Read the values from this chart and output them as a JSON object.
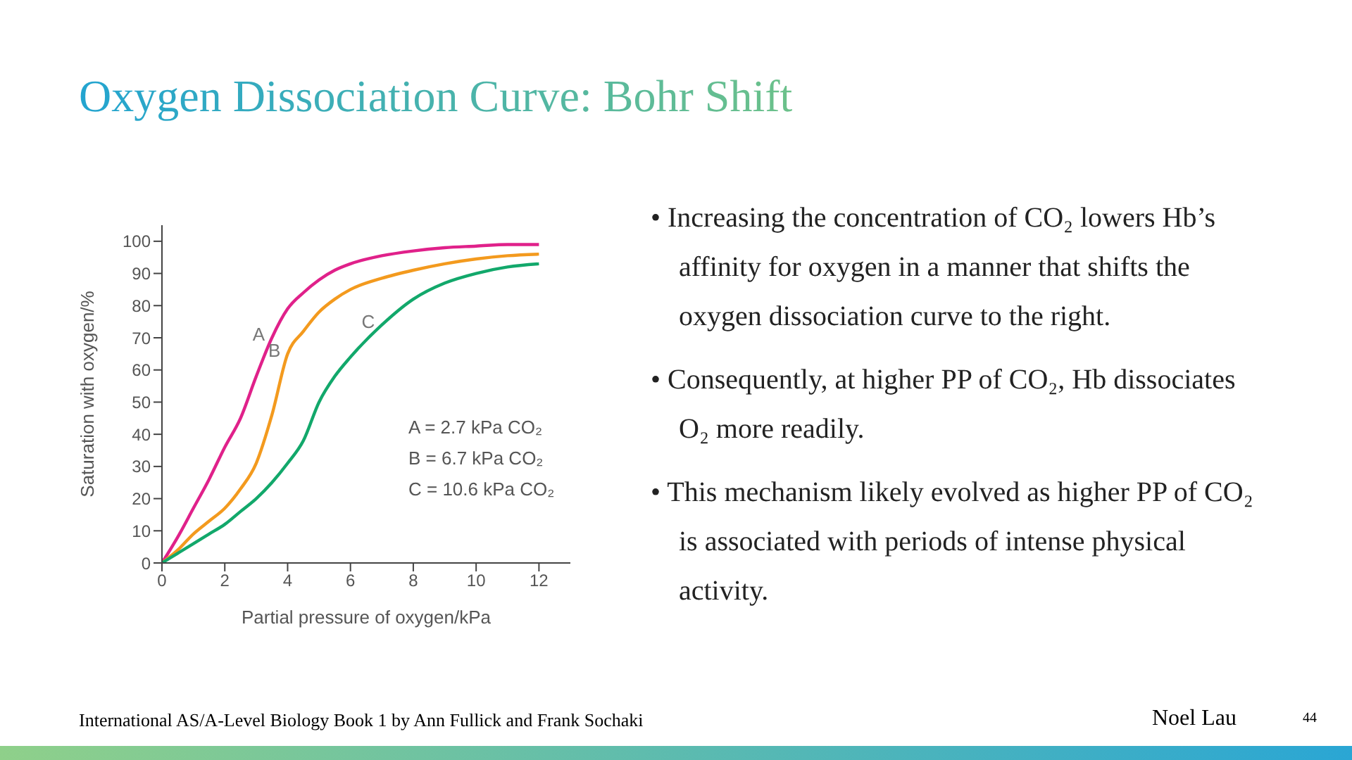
{
  "chart_data": {
    "type": "line",
    "title": "Oxygen Dissociation Curve: Bohr Shift",
    "xlabel": "Partial pressure of oxygen/kPa",
    "ylabel": "Saturation with oxygen/%",
    "x": [
      0,
      0.5,
      1,
      1.5,
      2,
      2.5,
      3,
      3.5,
      4,
      4.5,
      5,
      5.5,
      6,
      7,
      8,
      9,
      10,
      11,
      12
    ],
    "series": [
      {
        "name": "A",
        "color": "#e0218a",
        "values": [
          0,
          8,
          17,
          26,
          36,
          45,
          58,
          70,
          79,
          84,
          88,
          91,
          93,
          95.5,
          97,
          98,
          98.5,
          99,
          99
        ]
      },
      {
        "name": "B",
        "color": "#f39a1e",
        "values": [
          0,
          4,
          9,
          13,
          17,
          23,
          31,
          46,
          65,
          72,
          78,
          82,
          85,
          88.5,
          91,
          93,
          94.5,
          95.5,
          96
        ]
      },
      {
        "name": "C",
        "color": "#12a86b",
        "values": [
          0,
          3,
          6,
          9,
          12,
          16,
          20,
          25,
          31,
          38,
          50,
          58,
          64,
          74,
          82,
          87,
          90,
          92,
          93
        ]
      }
    ],
    "xlim": [
      0,
      13
    ],
    "xticks": [
      0,
      2,
      4,
      6,
      8,
      10,
      12
    ],
    "ylim": [
      0,
      105
    ],
    "yticks": [
      0,
      10,
      20,
      30,
      40,
      50,
      60,
      70,
      80,
      90,
      100
    ],
    "grid": false,
    "legend": false,
    "marker": "none",
    "line_style": "solid",
    "annotations": [
      "A = 2.7 kPa CO₂",
      "B = 6.7 kPa CO₂",
      "C = 10.6 kPa CO₂",
      "• Increasing the concentration of CO₂ lowers Hb’s affinity for oxygen in a manner that shifts the oxygen dissociation curve to the right.",
      "• Consequently, at higher PP of CO₂, Hb dissociates O₂ more readily.",
      "• This mechanism likely evolved as higher PP of CO₂ is associated with periods of intense physical activity.",
      "International AS/A-Level Biology Book 1 by Ann Fullick and Frank Sochaki",
      "Noel Lau",
      "44"
    ]
  }
}
